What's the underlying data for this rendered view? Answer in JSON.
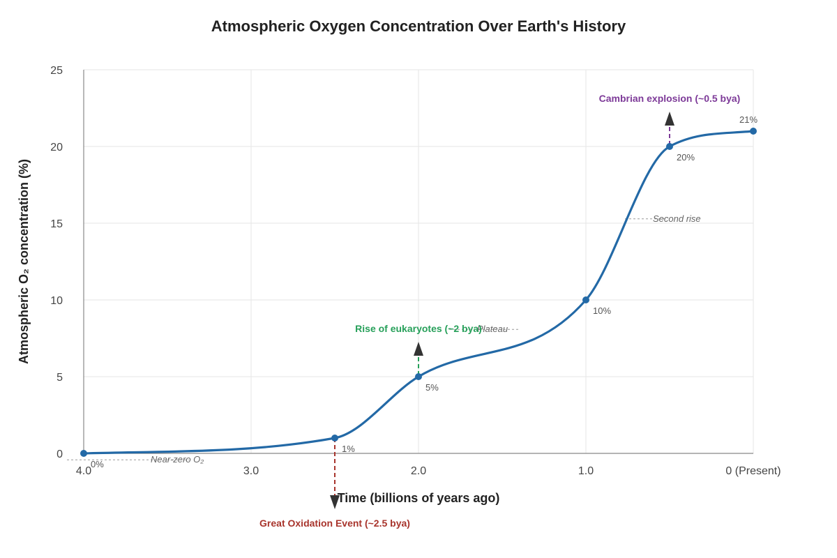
{
  "chart_data": {
    "type": "line",
    "title": "Atmospheric Oxygen Concentration Over Earth's History",
    "xlabel": "Time (billions of years ago)",
    "ylabel": "Atmospheric O₂ concentration (%)",
    "xlim": [
      4.0,
      0
    ],
    "ylim": [
      0,
      25
    ],
    "x_ticks": [
      {
        "value": 4.0,
        "label": "4.0"
      },
      {
        "value": 3.0,
        "label": "3.0"
      },
      {
        "value": 2.0,
        "label": "2.0"
      },
      {
        "value": 1.0,
        "label": "1.0"
      },
      {
        "value": 0,
        "label": "0 (Present)"
      }
    ],
    "y_ticks": [
      {
        "value": 0,
        "label": "0"
      },
      {
        "value": 5,
        "label": "5"
      },
      {
        "value": 10,
        "label": "10"
      },
      {
        "value": 15,
        "label": "15"
      },
      {
        "value": 20,
        "label": "20"
      },
      {
        "value": 25,
        "label": "25"
      }
    ],
    "grid": true,
    "line_color": "#2369a6",
    "series": [
      {
        "points": [
          {
            "x": 4.0,
            "y": 0,
            "label": "0%"
          },
          {
            "x": 2.5,
            "y": 1,
            "label": "1%"
          },
          {
            "x": 2.0,
            "y": 5,
            "label": "5%"
          },
          {
            "x": 1.0,
            "y": 10,
            "label": "10%"
          },
          {
            "x": 0.5,
            "y": 20,
            "label": "20%"
          },
          {
            "x": 0,
            "y": 21,
            "label": "21%"
          }
        ]
      }
    ],
    "events": [
      {
        "x": 2.5,
        "y": 1,
        "label": "Great Oxidation Event (~2.5 bya)",
        "color": "#a8342c",
        "direction": "down"
      },
      {
        "x": 2.0,
        "y": 5,
        "label": "Rise of eukaryotes (~2 bya)",
        "color": "#27a05a",
        "direction": "up"
      },
      {
        "x": 0.5,
        "y": 20,
        "label": "Cambrian explosion (~0.5 bya)",
        "color": "#7d3a98",
        "direction": "up"
      }
    ],
    "phase_annotations": [
      {
        "x": 3.6,
        "y": -0.6,
        "label": "Near-zero O₂"
      },
      {
        "x": 1.65,
        "y": 7.9,
        "label": "Plateau"
      },
      {
        "x": 0.6,
        "y": 15.1,
        "label": "Second rise"
      }
    ]
  }
}
